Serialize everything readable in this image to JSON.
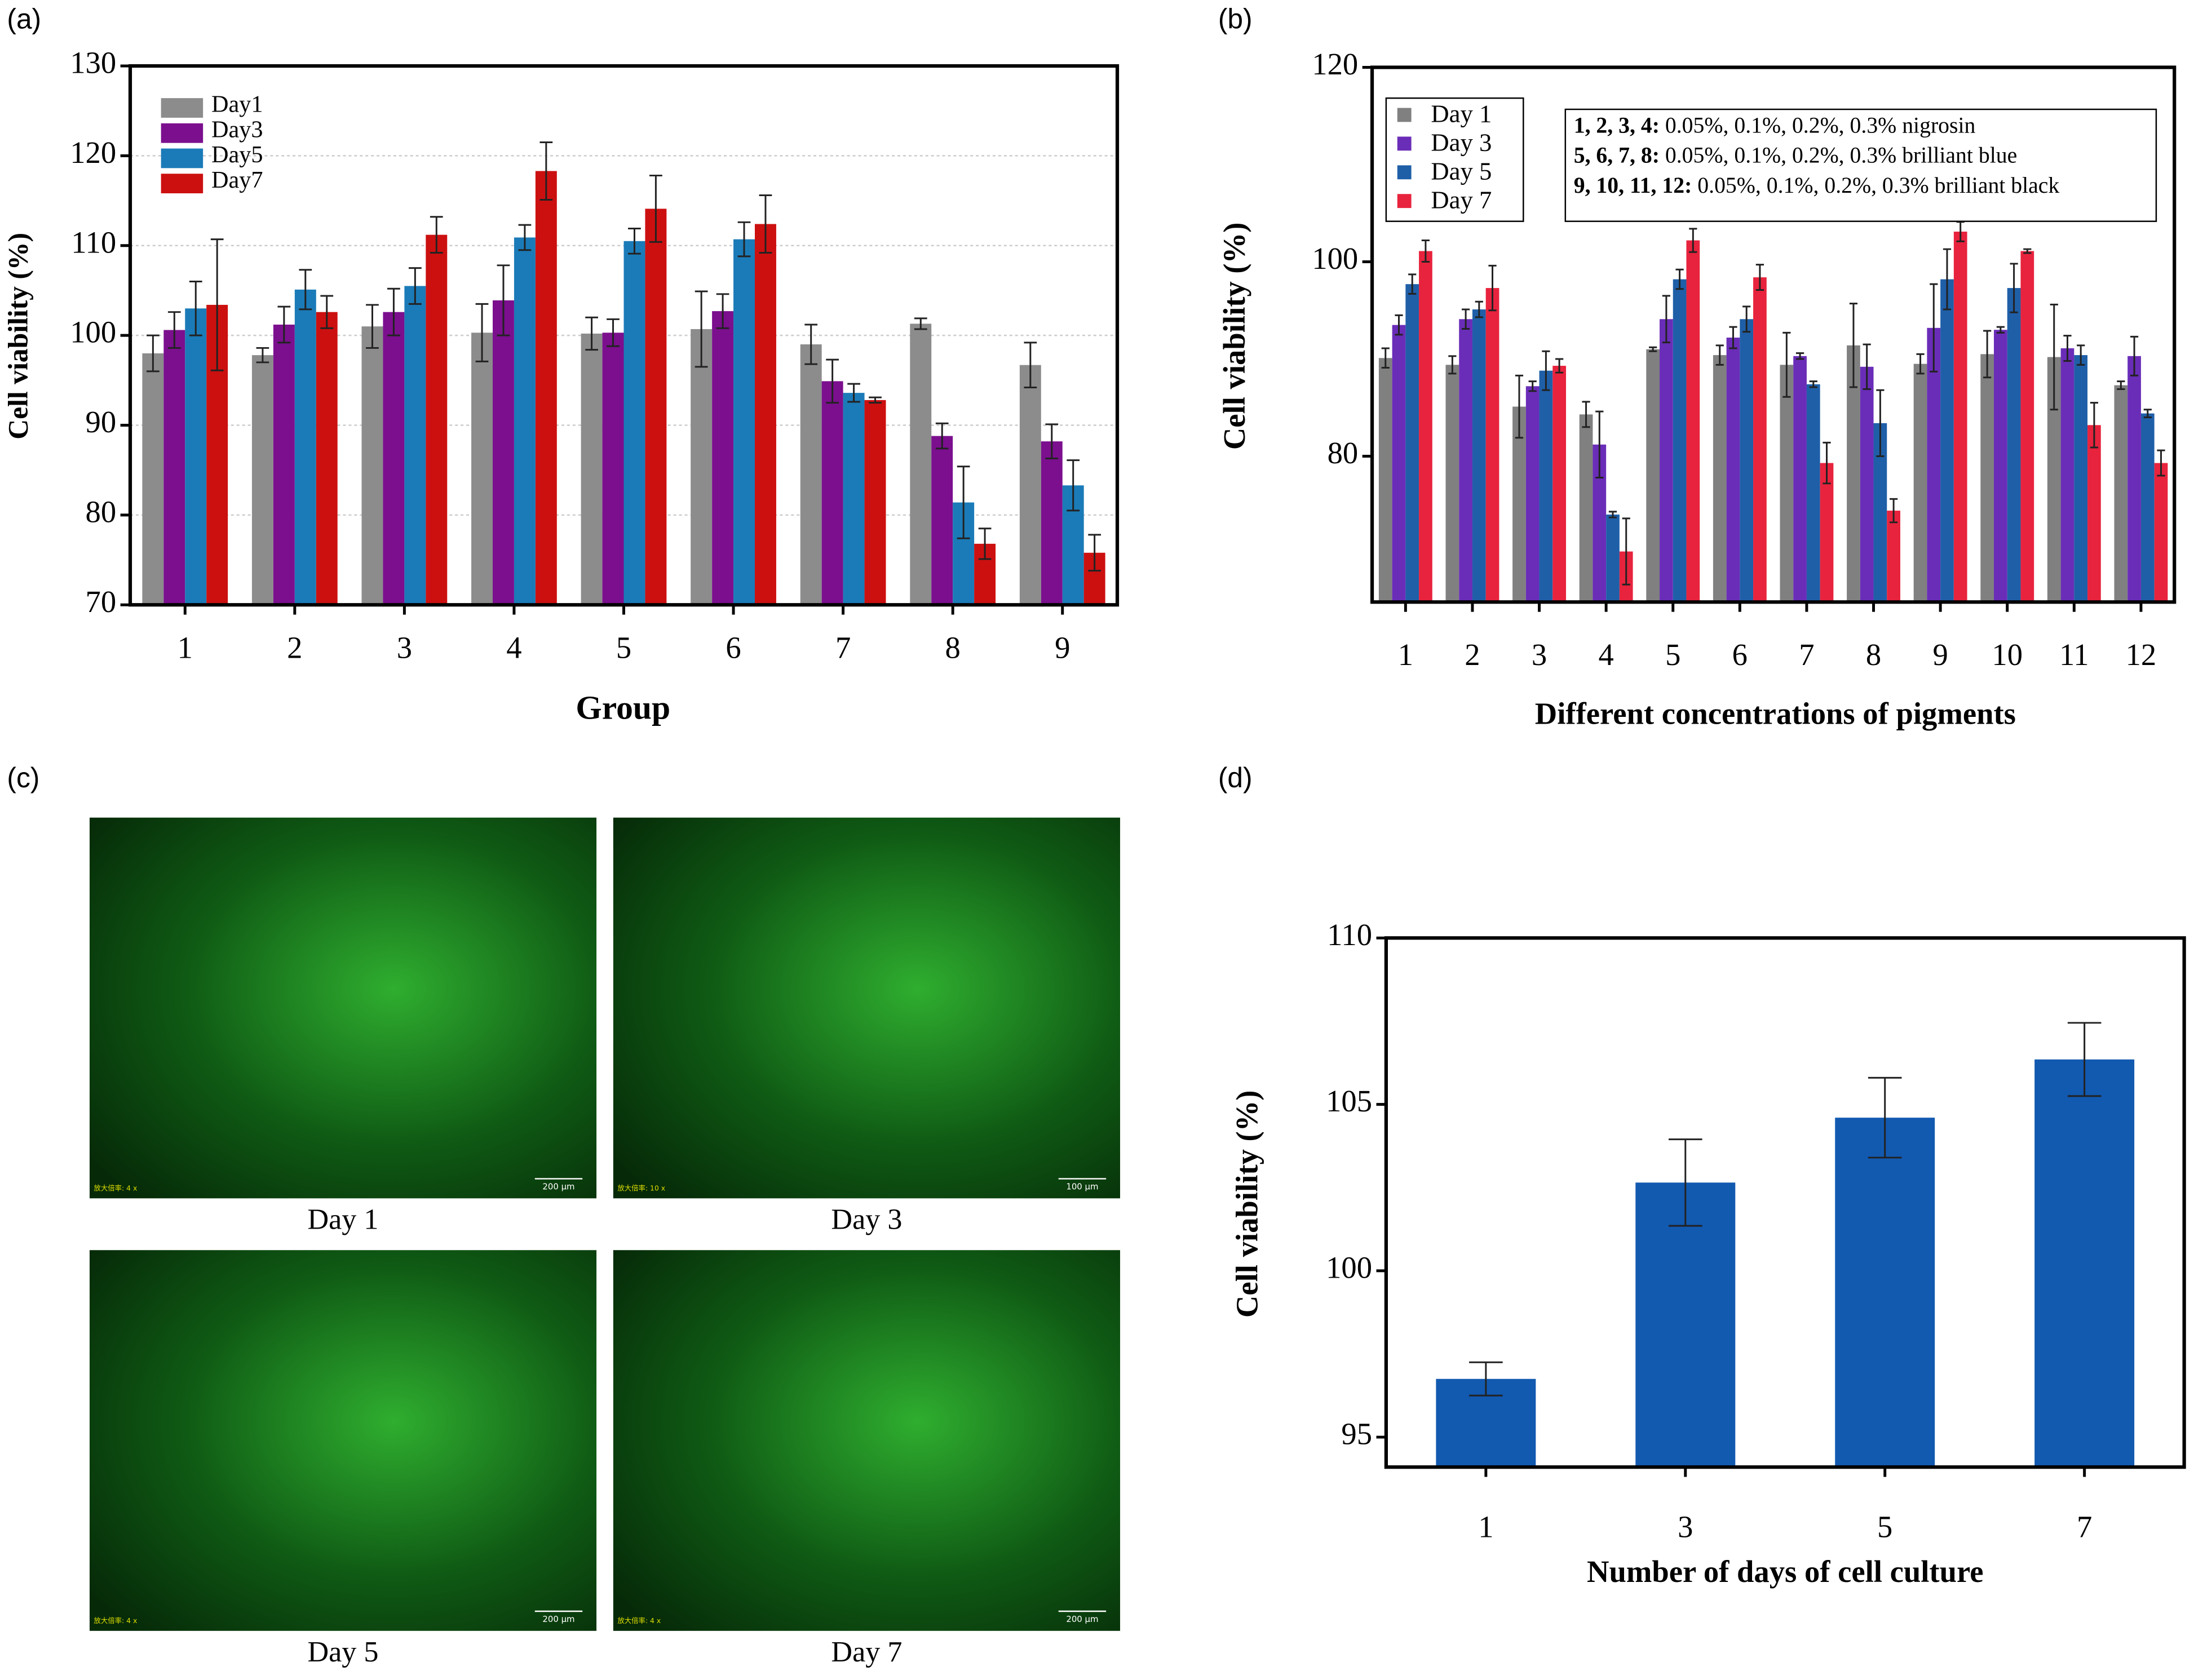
{
  "chart_data": [
    {
      "type": "bar",
      "label": "(a)",
      "xlabel": "Group",
      "ylabel": "Cell viability (%)",
      "categories": [
        "1",
        "2",
        "3",
        "4",
        "5",
        "6",
        "7",
        "8",
        "9"
      ],
      "ylim": [
        70,
        130
      ],
      "yticks": [
        70,
        80,
        90,
        100,
        110,
        120,
        130
      ],
      "grid": true,
      "legend": "upper-left",
      "series": [
        {
          "name": "Day1",
          "color": "#8c8c8c",
          "values": [
            98,
            97.8,
            101,
            100.3,
            100.2,
            100.7,
            99,
            101.3,
            96.7
          ],
          "errors": [
            2,
            0.8,
            2.4,
            3.2,
            1.8,
            4.2,
            2.2,
            0.6,
            2.5
          ]
        },
        {
          "name": "Day3",
          "color": "#7b0f8e",
          "values": [
            100.6,
            101.2,
            102.6,
            103.9,
            100.3,
            102.7,
            94.9,
            88.8,
            88.2
          ],
          "errors": [
            2,
            2,
            2.6,
            3.9,
            1.5,
            1.9,
            2.4,
            1.4,
            1.9
          ]
        },
        {
          "name": "Day5",
          "color": "#1b7bb8",
          "values": [
            103,
            105.1,
            105.5,
            110.9,
            110.5,
            110.7,
            93.6,
            81.4,
            83.3
          ],
          "errors": [
            3,
            2.2,
            2,
            1.4,
            1.4,
            1.9,
            1,
            4,
            2.8
          ]
        },
        {
          "name": "Day7",
          "color": "#cc1010",
          "values": [
            103.4,
            102.6,
            111.2,
            118.3,
            114.1,
            112.4,
            92.8,
            76.8,
            75.8
          ],
          "errors": [
            7.3,
            1.8,
            2,
            3.2,
            3.7,
            3.2,
            0.3,
            1.7,
            2
          ]
        }
      ]
    },
    {
      "type": "bar",
      "label": "(b)",
      "xlabel": "Different concentrations of pigments",
      "ylabel": "Cell viability (%)",
      "categories": [
        "1",
        "2",
        "3",
        "4",
        "5",
        "6",
        "7",
        "8",
        "9",
        "10",
        "11",
        "12"
      ],
      "ylim": [
        65,
        120
      ],
      "yticks": [
        80,
        100,
        120
      ],
      "grid": false,
      "legend": "upper-left",
      "annotations": [
        {
          "bold": "1, 2, 3, 4:",
          "text": "0.05%, 0.1%, 0.2%, 0.3% nigrosin"
        },
        {
          "bold": "5, 6, 7, 8:",
          "text": "0.05%, 0.1%, 0.2%, 0.3% brilliant blue"
        },
        {
          "bold": "9, 10, 11, 12:",
          "text": "0.05%, 0.1%, 0.2%, 0.3% brilliant black"
        }
      ],
      "series": [
        {
          "name": "Day 1",
          "color": "#808080",
          "values": [
            90.1,
            89.4,
            85.1,
            84.3,
            91,
            90.4,
            89.4,
            91.4,
            89.5,
            90.5,
            90.2,
            87.3
          ],
          "errors": [
            1,
            0.9,
            3.2,
            1.3,
            0.2,
            1,
            3.3,
            4.3,
            1,
            2.4,
            5.4,
            0.4
          ]
        },
        {
          "name": "Day 3",
          "color": "#6a2db8",
          "values": [
            93.5,
            94.1,
            87.2,
            81.2,
            94.1,
            92.2,
            90.3,
            89.2,
            93.2,
            93,
            91.1,
            90.3
          ],
          "errors": [
            1,
            1,
            0.5,
            3.4,
            2.4,
            1.1,
            0.3,
            2.3,
            4.5,
            0.3,
            1.3,
            2
          ]
        },
        {
          "name": "Day 5",
          "color": "#1f5fa8",
          "values": [
            97.7,
            95.1,
            88.8,
            74,
            98.2,
            94.1,
            87.4,
            83.4,
            98.2,
            97.3,
            90.4,
            84.4
          ],
          "errors": [
            1,
            0.8,
            2,
            0.3,
            1,
            1.3,
            0.3,
            3.4,
            3.1,
            2.5,
            1,
            0.4
          ]
        },
        {
          "name": "Day 7",
          "color": "#e8233d",
          "values": [
            101.1,
            97.3,
            89.3,
            70.2,
            102.2,
            98.4,
            79.3,
            74.4,
            103.1,
            101.1,
            83.2,
            79.3
          ],
          "errors": [
            1.1,
            2.3,
            0.7,
            3.4,
            1.2,
            1.3,
            2.1,
            1.2,
            1,
            0.2,
            2.3,
            1.3
          ]
        }
      ]
    },
    {
      "type": "image",
      "label": "(c)",
      "captions": [
        "Day 1",
        "Day 3",
        "Day 5",
        "Day 7"
      ],
      "scale_bars": [
        "200 μm",
        "100 μm",
        "200 μm",
        "200 μm"
      ],
      "magnifications": [
        "放大倍率: 4 x",
        "放大倍率: 10 x",
        "放大倍率: 4 x",
        "放大倍率: 4 x"
      ]
    },
    {
      "type": "bar",
      "label": "(d)",
      "xlabel": "Number of days of cell culture",
      "ylabel": "Cell viability (%)",
      "categories": [
        "1",
        "3",
        "5",
        "7"
      ],
      "ylim": [
        94.1,
        110
      ],
      "yticks": [
        95,
        100,
        105,
        110
      ],
      "grid": false,
      "series": [
        {
          "color": "#1259b0",
          "values": [
            96.75,
            102.65,
            104.6,
            106.35
          ],
          "errors": [
            0.5,
            1.3,
            1.2,
            1.1
          ]
        }
      ]
    }
  ]
}
